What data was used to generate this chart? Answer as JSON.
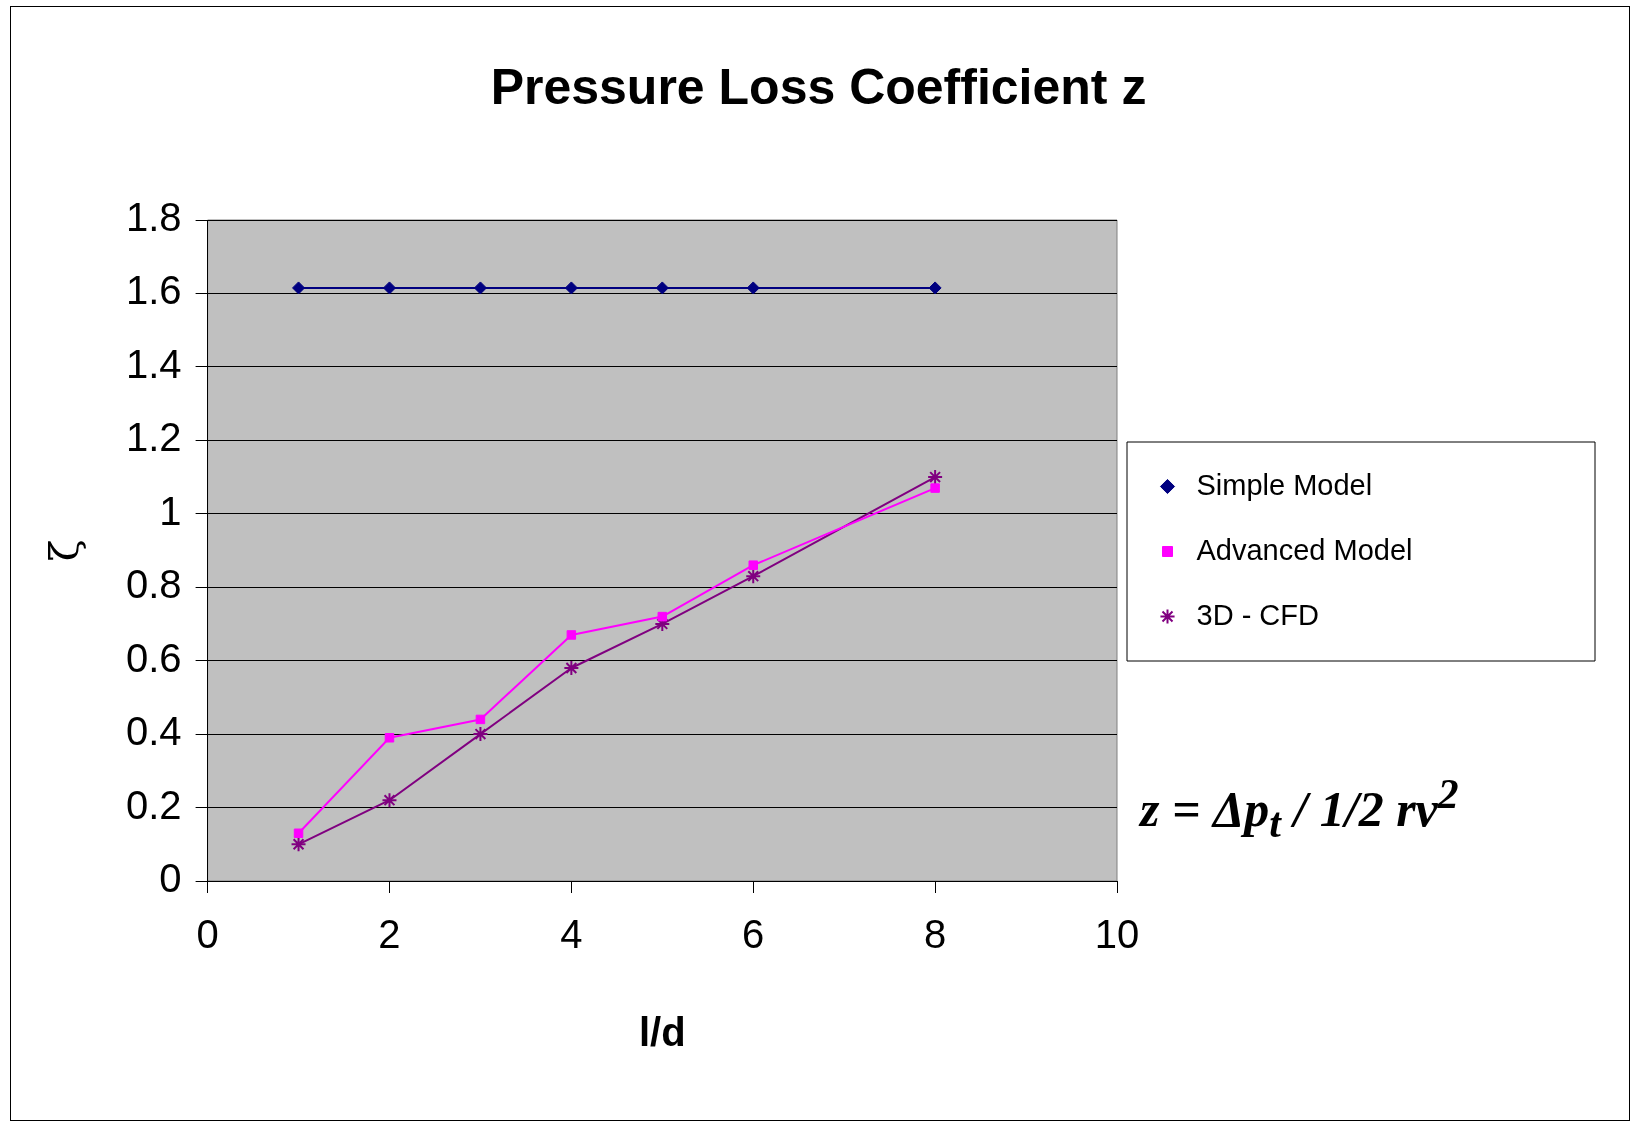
{
  "chart_data": {
    "type": "line",
    "title": "Pressure Loss Coefficient z",
    "xlabel": "l/d",
    "ylabel": "ζ",
    "x": [
      1,
      2,
      3,
      4,
      5,
      6,
      8
    ],
    "series": [
      {
        "name": "Simple Model",
        "color": "#000080",
        "marker": "diamond",
        "values": [
          1.615,
          1.615,
          1.615,
          1.615,
          1.615,
          1.615,
          1.615
        ]
      },
      {
        "name": "Advanced Model",
        "color": "#ff00ff",
        "marker": "square",
        "values": [
          0.13,
          0.39,
          0.44,
          0.67,
          0.72,
          0.86,
          1.07
        ]
      },
      {
        "name": "3D - CFD",
        "color": "#800080",
        "marker": "cross",
        "values": [
          0.1,
          0.22,
          0.4,
          0.58,
          0.7,
          0.83,
          1.1
        ]
      }
    ],
    "xlim": [
      0,
      10
    ],
    "xticks": [
      0,
      2,
      4,
      6,
      8,
      10
    ],
    "ylim": [
      0,
      1.8
    ],
    "yticks": [
      0,
      0.2,
      0.4,
      0.6,
      0.8,
      1,
      1.2,
      1.4,
      1.6,
      1.8
    ],
    "grid": "y",
    "legend": "right",
    "line_style": "solid",
    "annotations": [
      "z = Δp$_{t}$ / 1/2 rv$^{2}$"
    ]
  }
}
